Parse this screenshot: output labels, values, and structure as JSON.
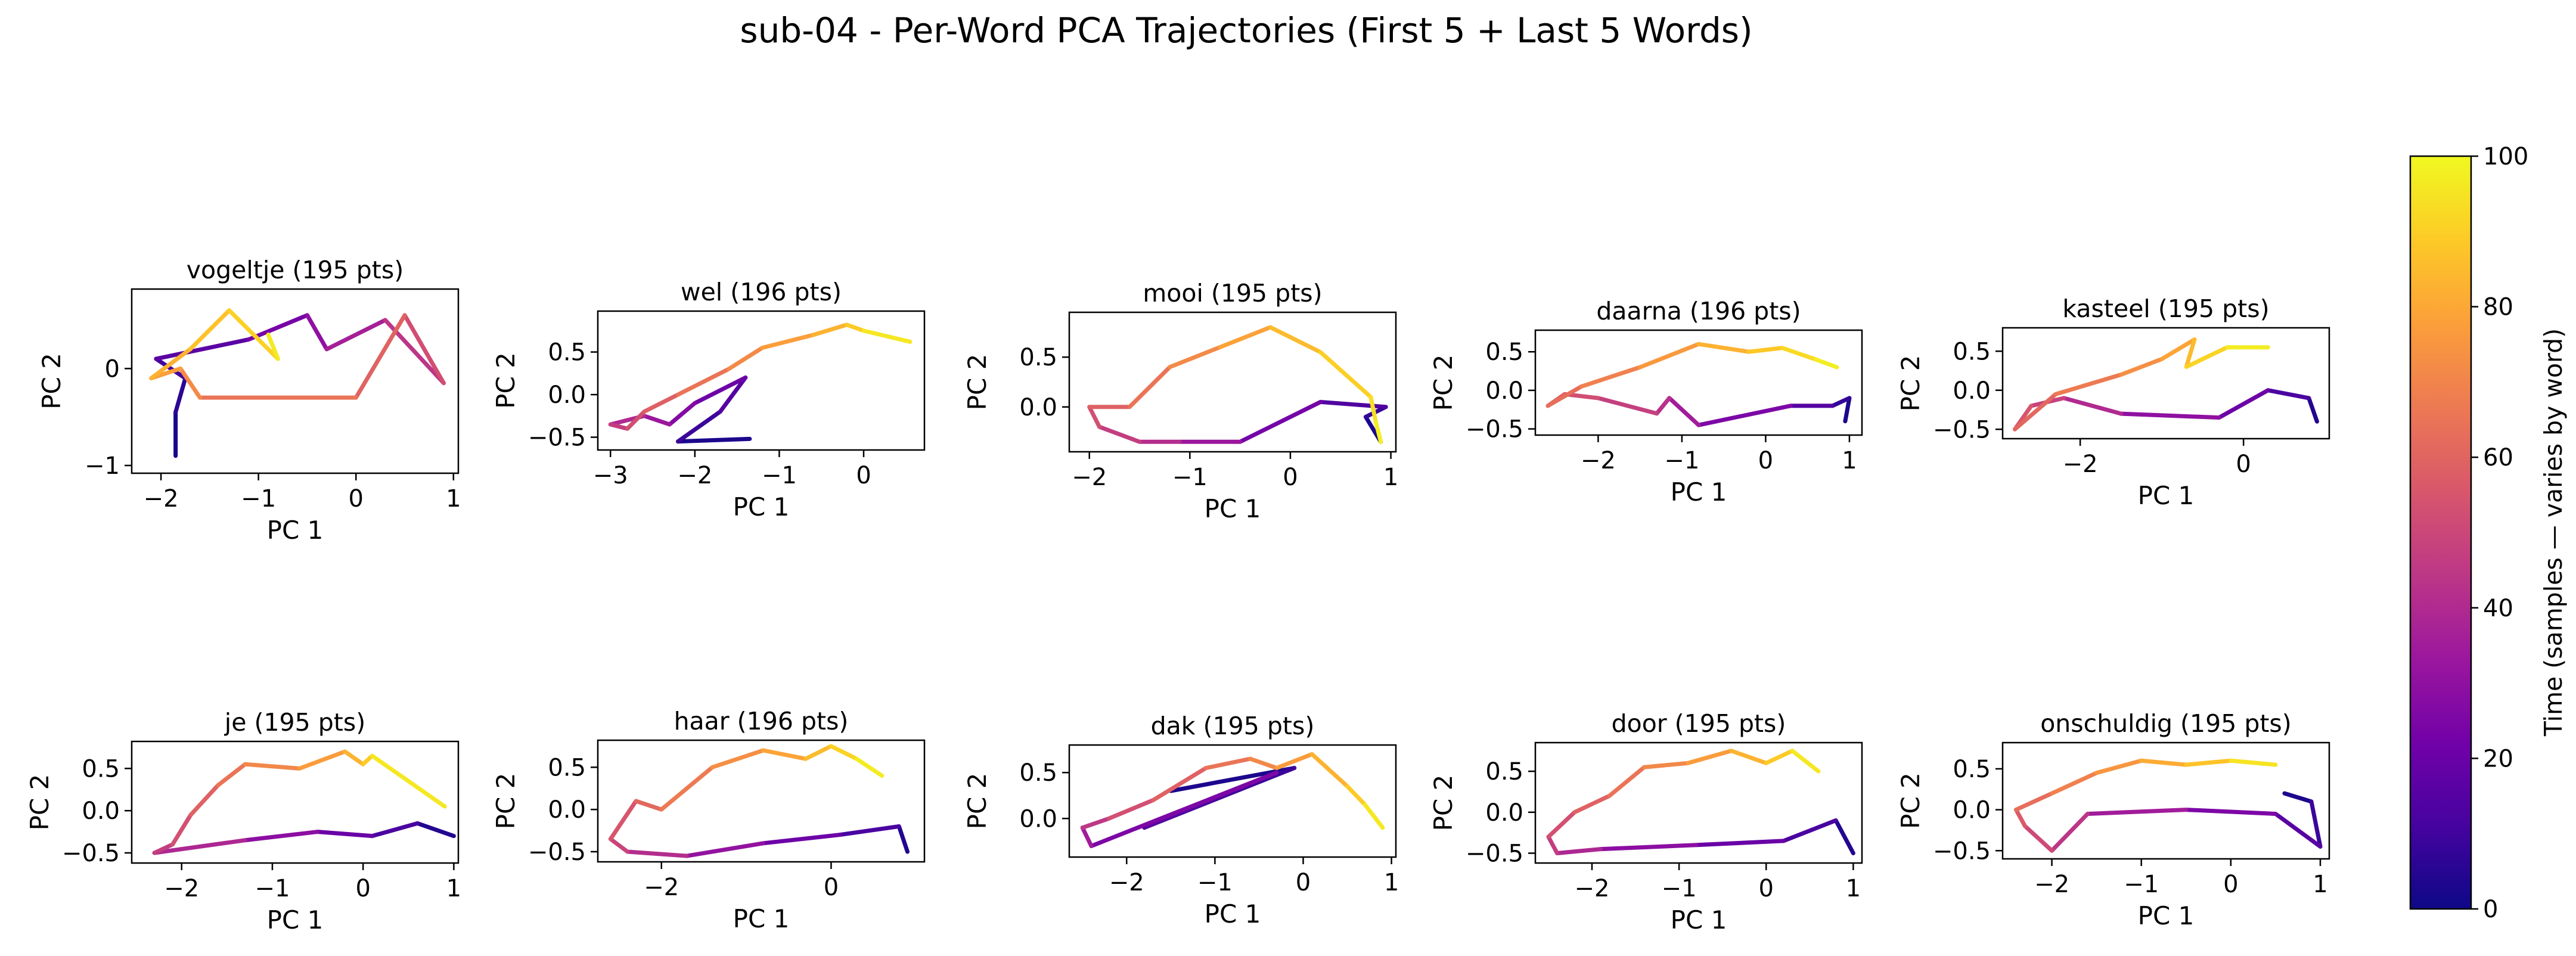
{
  "figure": {
    "title": "sub-04 - Per-Word PCA Trajectories (First 5 + Last 5 Words)"
  },
  "colorbar": {
    "label": "Time (samples — varies by word)",
    "ticks": [
      0,
      20,
      40,
      60,
      80,
      100
    ],
    "range": [
      0,
      100
    ],
    "colormap": "plasma",
    "colormap_stops": [
      "#0d0887",
      "#46039f",
      "#7201a8",
      "#9c179e",
      "#bd3786",
      "#d8576b",
      "#ed7953",
      "#fb9f3a",
      "#fdca26",
      "#f0f921"
    ]
  },
  "chart_data": [
    {
      "type": "line",
      "title": "vogeltje (195 pts)",
      "xlabel": "PC 1",
      "ylabel": "PC 2",
      "xlim": [
        -2.3,
        1.05
      ],
      "ylim": [
        -1.08,
        0.82
      ],
      "xticks": [
        -2,
        -1,
        0,
        1
      ],
      "yticks": [
        -1,
        0
      ],
      "grid": false,
      "series": [
        {
          "t": [
            0,
            4,
            8,
            13,
            20,
            27,
            33,
            40,
            48,
            57,
            62,
            68,
            75,
            80,
            85,
            88,
            93,
            100
          ],
          "x": [
            -1.85,
            -1.85,
            -1.75,
            -2.05,
            -1.1,
            -0.5,
            -0.3,
            0.3,
            0.9,
            0.5,
            0.0,
            -1.6,
            -1.8,
            -2.1,
            -1.7,
            -1.3,
            -0.8,
            -0.9
          ],
          "y": [
            -0.9,
            -0.45,
            -0.1,
            0.1,
            0.3,
            0.55,
            0.2,
            0.5,
            -0.15,
            0.55,
            -0.3,
            -0.3,
            0.0,
            -0.1,
            0.2,
            0.6,
            0.1,
            0.35
          ]
        }
      ]
    },
    {
      "type": "line",
      "title": "wel (196 pts)",
      "xlabel": "PC 1",
      "ylabel": "PC 2",
      "xlim": [
        -3.15,
        0.72
      ],
      "ylim": [
        -0.65,
        0.98
      ],
      "xticks": [
        -3,
        -2,
        -1,
        0
      ],
      "yticks": [
        -0.5,
        0.0,
        0.5
      ],
      "grid": false,
      "series": [
        {
          "t": [
            0,
            6,
            12,
            18,
            24,
            30,
            36,
            44,
            50,
            55,
            62,
            68,
            75,
            80,
            86,
            92,
            100
          ],
          "x": [
            -1.35,
            -2.2,
            -1.7,
            -1.4,
            -2.0,
            -2.3,
            -2.6,
            -3.0,
            -2.8,
            -2.6,
            -2.2,
            -1.6,
            -1.2,
            -0.6,
            -0.2,
            0.0,
            0.55
          ],
          "y": [
            -0.52,
            -0.55,
            -0.2,
            0.2,
            -0.1,
            -0.35,
            -0.25,
            -0.35,
            -0.4,
            -0.2,
            0.0,
            0.3,
            0.55,
            0.7,
            0.82,
            0.75,
            0.62
          ]
        }
      ]
    },
    {
      "type": "line",
      "title": "mooi (195 pts)",
      "xlabel": "PC 1",
      "ylabel": "PC 2",
      "xlim": [
        -2.2,
        1.05
      ],
      "ylim": [
        -0.45,
        0.95
      ],
      "xticks": [
        -2,
        -1,
        0,
        1
      ],
      "yticks": [
        0.0,
        0.5
      ],
      "grid": false,
      "series": [
        {
          "t": [
            0,
            5,
            10,
            18,
            28,
            38,
            44,
            50,
            56,
            62,
            68,
            75,
            82,
            88,
            92,
            96,
            100
          ],
          "x": [
            0.9,
            0.75,
            0.95,
            0.3,
            -0.5,
            -1.1,
            -1.5,
            -1.9,
            -2.0,
            -1.6,
            -1.2,
            -0.7,
            -0.2,
            0.3,
            0.8,
            0.85,
            0.9
          ],
          "y": [
            -0.35,
            -0.1,
            0.0,
            0.05,
            -0.35,
            -0.35,
            -0.35,
            -0.2,
            0.0,
            0.0,
            0.4,
            0.6,
            0.8,
            0.55,
            0.1,
            -0.15,
            -0.35
          ]
        }
      ]
    },
    {
      "type": "line",
      "title": "daarna (196 pts)",
      "xlabel": "PC 1",
      "ylabel": "PC 2",
      "xlim": [
        -2.75,
        1.15
      ],
      "ylim": [
        -0.58,
        0.78
      ],
      "xticks": [
        -2,
        -1,
        0,
        1
      ],
      "yticks": [
        -0.5,
        0.0,
        0.5
      ],
      "grid": false,
      "series": [
        {
          "t": [
            0,
            5,
            10,
            20,
            30,
            40,
            45,
            50,
            55,
            60,
            66,
            72,
            80,
            86,
            90,
            95,
            100
          ],
          "x": [
            0.95,
            1.0,
            0.8,
            0.3,
            -0.8,
            -1.15,
            -1.3,
            -2.0,
            -2.4,
            -2.6,
            -2.2,
            -1.5,
            -0.8,
            -0.2,
            0.2,
            0.6,
            0.85
          ],
          "y": [
            -0.4,
            -0.1,
            -0.2,
            -0.2,
            -0.45,
            -0.1,
            -0.3,
            -0.1,
            -0.05,
            -0.2,
            0.05,
            0.3,
            0.6,
            0.5,
            0.55,
            0.4,
            0.3
          ]
        }
      ]
    },
    {
      "type": "line",
      "title": "kasteel (195 pts)",
      "xlabel": "PC 1",
      "ylabel": "PC 2",
      "xlim": [
        -2.95,
        1.05
      ],
      "ylim": [
        -0.62,
        0.8
      ],
      "xticks": [
        -2,
        0
      ],
      "yticks": [
        -0.5,
        0.0,
        0.5
      ],
      "grid": false,
      "series": [
        {
          "t": [
            0,
            8,
            16,
            25,
            35,
            45,
            52,
            58,
            64,
            70,
            76,
            82,
            88,
            94,
            100
          ],
          "x": [
            0.9,
            0.8,
            0.3,
            -0.3,
            -1.5,
            -2.2,
            -2.6,
            -2.8,
            -2.3,
            -1.5,
            -1.0,
            -0.6,
            -0.7,
            -0.2,
            0.3
          ],
          "y": [
            -0.4,
            -0.1,
            0.0,
            -0.35,
            -0.3,
            -0.1,
            -0.2,
            -0.5,
            -0.05,
            0.2,
            0.4,
            0.65,
            0.3,
            0.55,
            0.55
          ]
        }
      ]
    },
    {
      "type": "line",
      "title": "je (195 pts)",
      "xlabel": "PC 1",
      "ylabel": "PC 2",
      "xlim": [
        -2.55,
        1.05
      ],
      "ylim": [
        -0.62,
        0.82
      ],
      "xticks": [
        -2,
        -1,
        0,
        1
      ],
      "yticks": [
        -0.5,
        0.0,
        0.5
      ],
      "grid": false,
      "series": [
        {
          "t": [
            0,
            8,
            16,
            24,
            34,
            44,
            50,
            56,
            62,
            68,
            74,
            80,
            86,
            92,
            100
          ],
          "x": [
            1.0,
            0.6,
            0.1,
            -0.5,
            -1.3,
            -2.3,
            -2.1,
            -1.9,
            -1.6,
            -1.3,
            -0.7,
            -0.2,
            0.0,
            0.1,
            0.9
          ],
          "y": [
            -0.3,
            -0.15,
            -0.3,
            -0.25,
            -0.35,
            -0.5,
            -0.4,
            -0.05,
            0.3,
            0.55,
            0.5,
            0.7,
            0.55,
            0.65,
            0.05
          ]
        }
      ]
    },
    {
      "type": "line",
      "title": "haar (196 pts)",
      "xlabel": "PC 1",
      "ylabel": "PC 2",
      "xlim": [
        -2.75,
        1.1
      ],
      "ylim": [
        -0.62,
        0.82
      ],
      "xticks": [
        -2,
        0
      ],
      "yticks": [
        -0.5,
        0.0,
        0.5
      ],
      "grid": false,
      "series": [
        {
          "t": [
            0,
            8,
            16,
            26,
            36,
            46,
            52,
            58,
            64,
            70,
            76,
            82,
            88,
            94,
            100
          ],
          "x": [
            0.9,
            0.8,
            0.1,
            -0.8,
            -1.7,
            -2.4,
            -2.6,
            -2.3,
            -2.0,
            -1.4,
            -0.8,
            -0.3,
            0.0,
            0.3,
            0.6
          ],
          "y": [
            -0.5,
            -0.2,
            -0.3,
            -0.4,
            -0.55,
            -0.5,
            -0.35,
            0.1,
            0.0,
            0.5,
            0.7,
            0.6,
            0.75,
            0.6,
            0.4
          ]
        }
      ]
    },
    {
      "type": "line",
      "title": "dak (195 pts)",
      "xlabel": "PC 1",
      "ylabel": "PC 2",
      "xlim": [
        -2.65,
        1.05
      ],
      "ylim": [
        -0.42,
        0.8
      ],
      "xticks": [
        -2,
        -1,
        0,
        1
      ],
      "yticks": [
        0.0,
        0.5
      ],
      "grid": false,
      "series": [
        {
          "t": [
            0,
            6,
            12,
            20,
            30,
            40,
            50,
            56,
            62,
            68,
            74,
            80,
            86,
            92,
            100
          ],
          "x": [
            -1.5,
            -0.1,
            -1.8,
            -0.3,
            -2.4,
            -2.5,
            -2.2,
            -1.7,
            -1.1,
            -0.6,
            -0.3,
            0.1,
            0.5,
            0.7,
            0.9
          ],
          "y": [
            0.3,
            0.55,
            -0.1,
            0.5,
            -0.3,
            -0.1,
            0.0,
            0.2,
            0.55,
            0.65,
            0.55,
            0.7,
            0.35,
            0.15,
            -0.1
          ]
        }
      ]
    },
    {
      "type": "line",
      "title": "door (195 pts)",
      "xlabel": "PC 1",
      "ylabel": "PC 2",
      "xlim": [
        -2.65,
        1.1
      ],
      "ylim": [
        -0.62,
        0.85
      ],
      "xticks": [
        -2,
        -1,
        0,
        1
      ],
      "yticks": [
        -0.5,
        0.0,
        0.5
      ],
      "grid": false,
      "series": [
        {
          "t": [
            0,
            8,
            16,
            24,
            34,
            44,
            50,
            56,
            62,
            68,
            74,
            80,
            86,
            92,
            100
          ],
          "x": [
            1.0,
            0.8,
            0.2,
            -0.8,
            -1.9,
            -2.4,
            -2.5,
            -2.2,
            -1.8,
            -1.4,
            -0.9,
            -0.4,
            0.0,
            0.3,
            0.6
          ],
          "y": [
            -0.5,
            -0.1,
            -0.35,
            -0.4,
            -0.45,
            -0.5,
            -0.3,
            0.0,
            0.2,
            0.55,
            0.6,
            0.75,
            0.6,
            0.75,
            0.5
          ]
        }
      ]
    },
    {
      "type": "line",
      "title": "onschuldig (195 pts)",
      "xlabel": "PC 1",
      "ylabel": "PC 2",
      "xlim": [
        -2.55,
        1.1
      ],
      "ylim": [
        -0.6,
        0.82
      ],
      "xticks": [
        -2,
        -1,
        0,
        1
      ],
      "yticks": [
        -0.5,
        0.0,
        0.5
      ],
      "grid": false,
      "series": [
        {
          "t": [
            0,
            6,
            12,
            20,
            30,
            40,
            48,
            54,
            60,
            66,
            72,
            78,
            84,
            90,
            100
          ],
          "x": [
            0.6,
            0.9,
            1.0,
            0.5,
            -0.5,
            -1.6,
            -2.0,
            -2.3,
            -2.4,
            -2.0,
            -1.5,
            -1.0,
            -0.5,
            0.0,
            0.5
          ],
          "y": [
            0.2,
            0.1,
            -0.45,
            -0.05,
            0.0,
            -0.05,
            -0.5,
            -0.2,
            0.0,
            0.2,
            0.45,
            0.6,
            0.55,
            0.6,
            0.55
          ]
        }
      ]
    }
  ]
}
